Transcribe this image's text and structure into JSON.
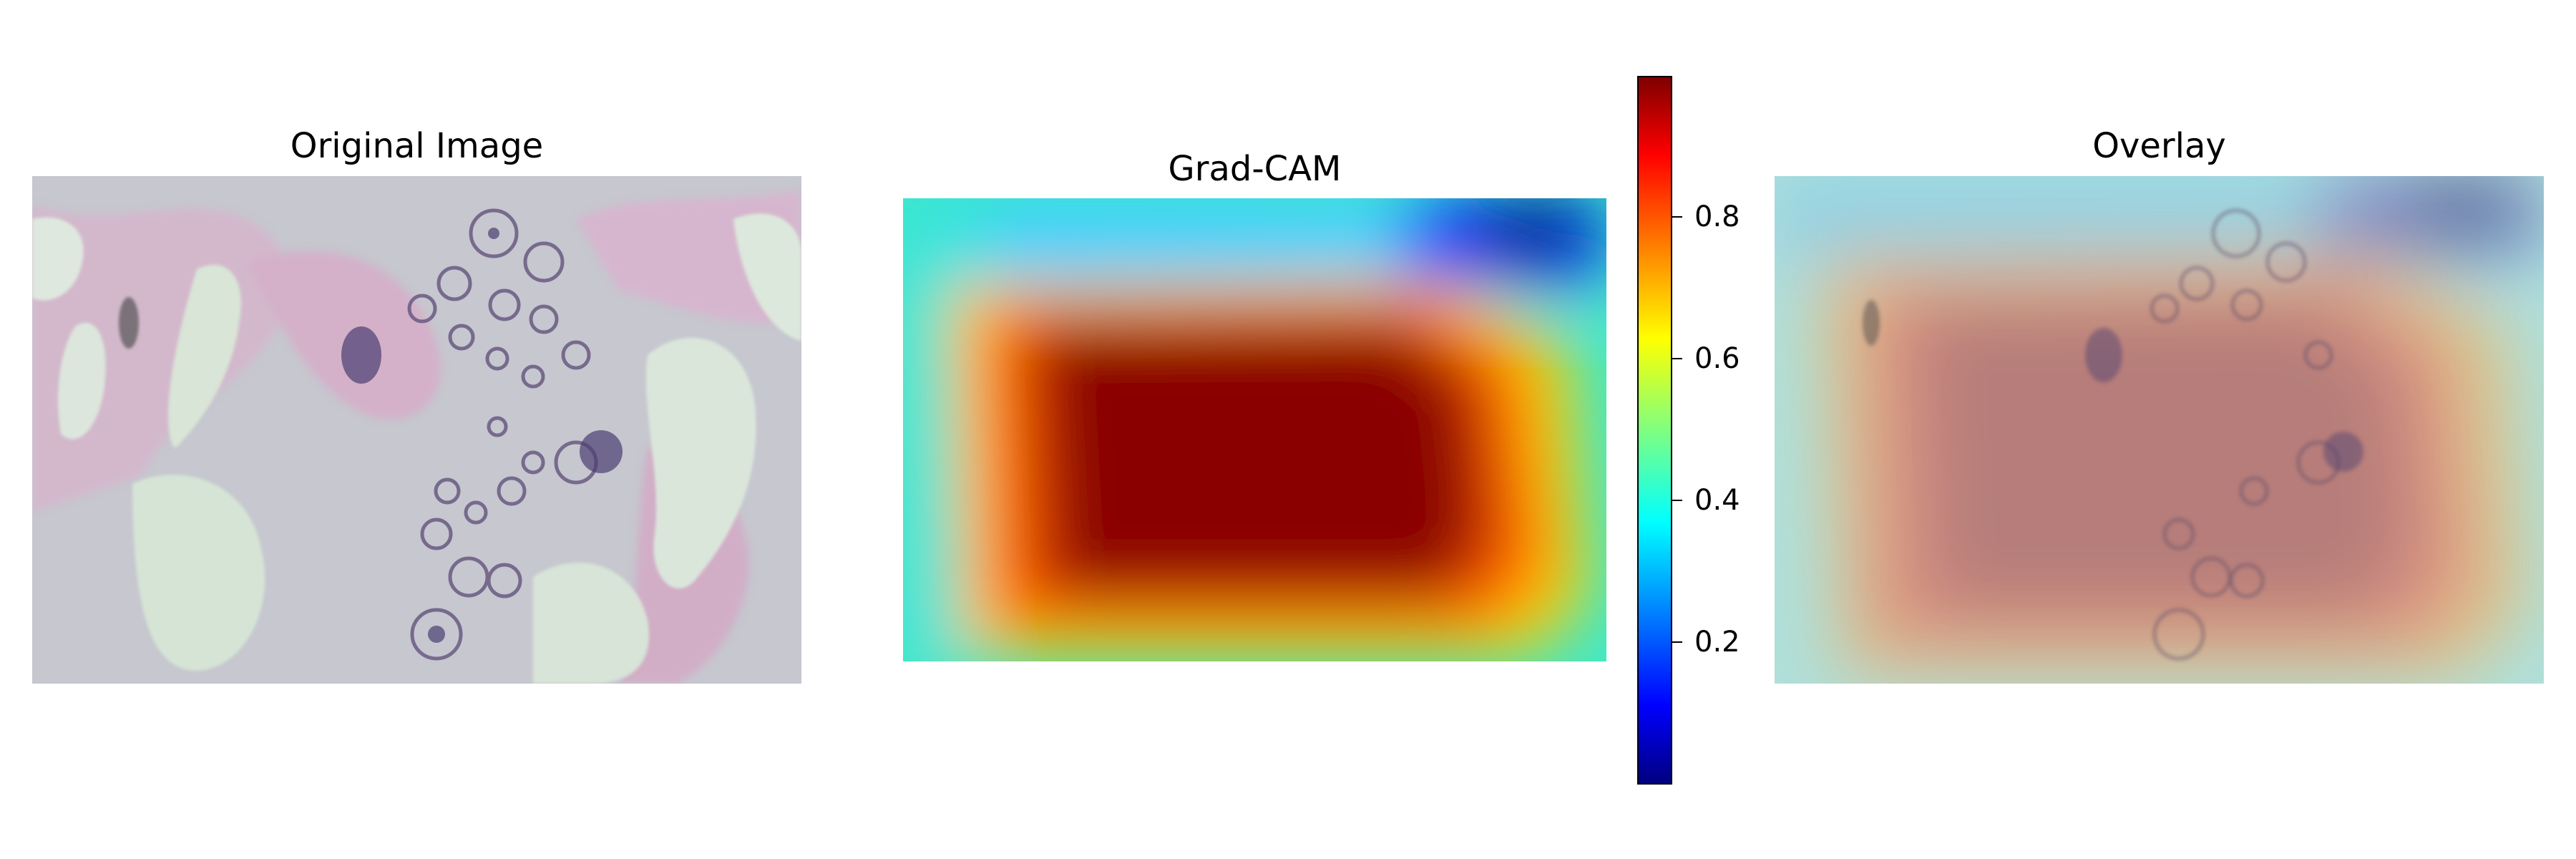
{
  "panels": {
    "original": {
      "title": "Original Image"
    },
    "gradcam": {
      "title": "Grad-CAM"
    },
    "overlay": {
      "title": "Overlay"
    }
  },
  "colorbar": {
    "colormap": "jet",
    "range": [
      0.0,
      1.0
    ],
    "ticks": [
      "0.2",
      "0.4",
      "0.6",
      "0.8"
    ]
  },
  "colors": {
    "tissue_background": "#c8c8cf",
    "stroma_pink": "#d9a8c6",
    "lumen": "#dbe7dc",
    "nuclei": "#5a4b7a"
  }
}
